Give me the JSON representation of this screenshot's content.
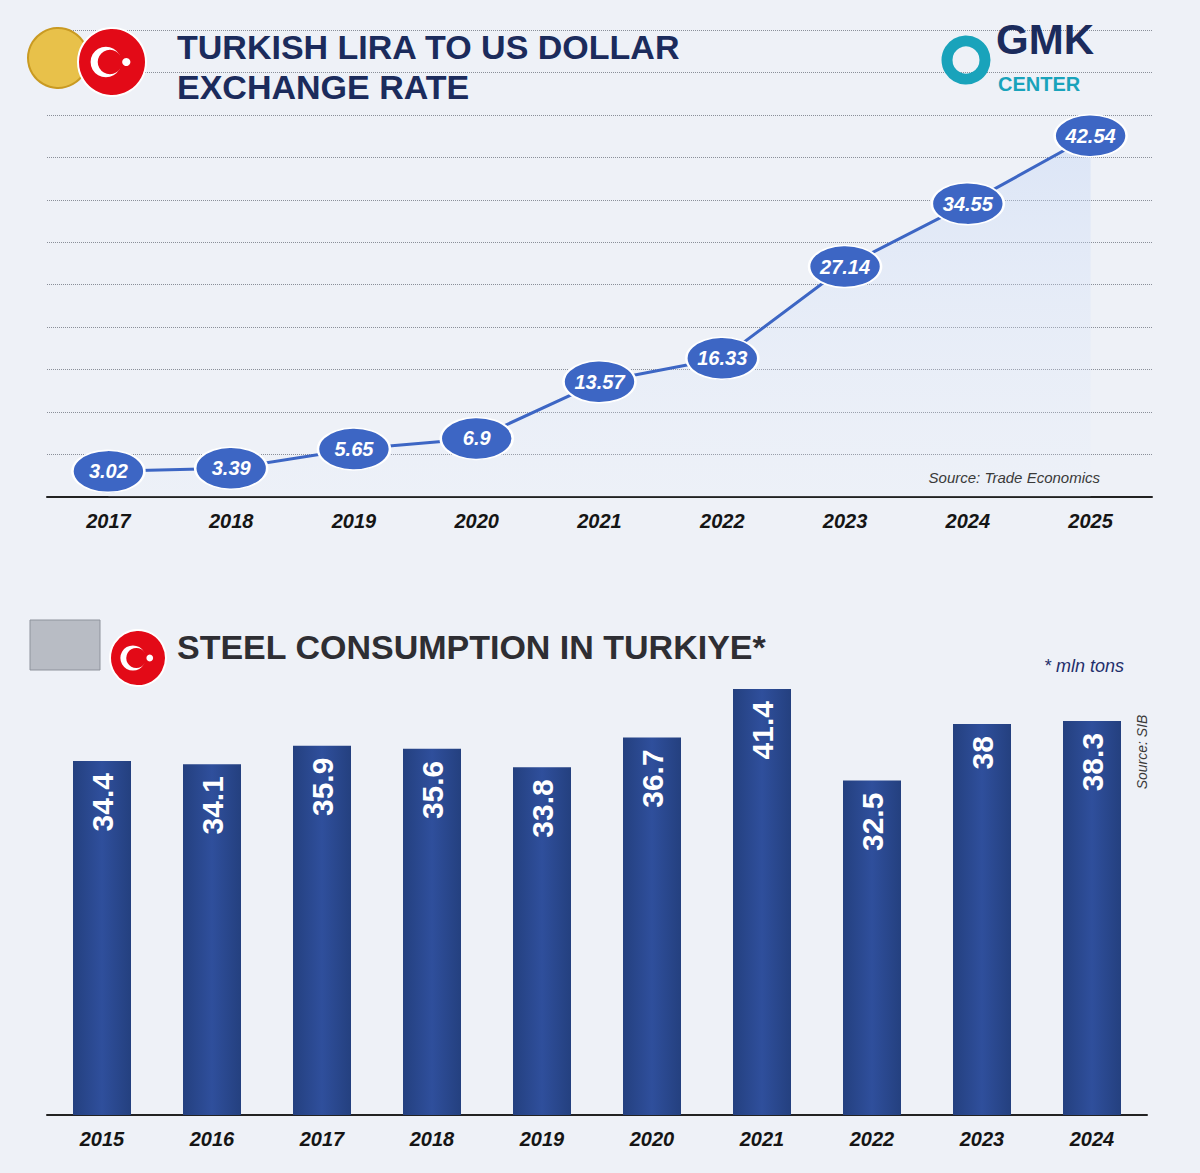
{
  "logo": {
    "name": "GMK",
    "sub": "CENTER"
  },
  "chart_data": [
    {
      "type": "line",
      "title": "TURKISH LIRA TO US DOLLAR EXCHANGE RATE",
      "source": "Source: Trade Economics",
      "categories": [
        "2017",
        "2018",
        "2019",
        "2020",
        "2021",
        "2022",
        "2023",
        "2024",
        "2025"
      ],
      "values": [
        3.02,
        3.39,
        5.65,
        6.9,
        13.57,
        16.33,
        27.14,
        34.55,
        42.54
      ],
      "color": "#3d66c4",
      "ylim": [
        0,
        55
      ],
      "yticks": [
        0,
        5,
        10,
        15,
        20,
        25,
        30,
        35,
        40,
        45,
        50,
        55
      ],
      "grid": true,
      "tick_labels": "x",
      "data_labels": true,
      "marker": "circle"
    },
    {
      "type": "bar",
      "title": "STEEL CONSUMPTION IN TURKIYE*",
      "note": "* mln tons",
      "source": "Source: SIB",
      "categories": [
        "2015",
        "2016",
        "2017",
        "2018",
        "2019",
        "2020",
        "2021",
        "2022",
        "2023",
        "2024"
      ],
      "values": [
        34.4,
        34.1,
        35.9,
        35.6,
        33.8,
        36.7,
        41.4,
        32.5,
        38,
        38.3
      ],
      "color": "#24407f",
      "ylim": [
        0,
        45
      ],
      "yticks": [
        0,
        15,
        30,
        45
      ],
      "grid": false,
      "tick_labels": "x",
      "data_labels": true
    }
  ]
}
